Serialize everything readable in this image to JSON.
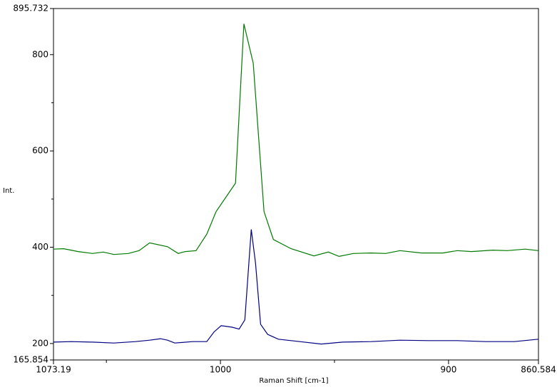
{
  "chart_data": {
    "type": "line",
    "xlabel": "Raman Shift [cm-1]",
    "ylabel": "Int.",
    "xlim": [
      1073.19,
      860.584
    ],
    "xticks": [
      1073.19,
      1000,
      900,
      860.584
    ],
    "xticks_minor": [
      1050,
      950
    ],
    "ylim": [
      165.854,
      895.732
    ],
    "yticks": [
      165.854,
      200,
      400,
      600,
      800,
      895.732
    ],
    "yticks_minor": [
      300,
      500,
      700
    ],
    "series": [
      {
        "color": "#007a00",
        "x": [
          1073.2,
          1068.7,
          1062.4,
          1056.1,
          1051.4,
          1046.7,
          1040.4,
          1035.7,
          1031.0,
          1023.2,
          1018.5,
          1015.4,
          1010.7,
          1006.0,
          1001.9,
          993.4,
          989.7,
          985.6,
          980.9,
          976.8,
          969.0,
          959.0,
          952.7,
          948.0,
          941.7,
          933.9,
          927.6,
          921.3,
          911.9,
          902.5,
          896.2,
          889.9,
          880.5,
          874.3,
          866.4,
          860.6
        ],
        "values": [
          396,
          397,
          391,
          387,
          390,
          385,
          387,
          393,
          409,
          401,
          387,
          391,
          393,
          427,
          474,
          533,
          864,
          782,
          474,
          416,
          397,
          382,
          390,
          381,
          387,
          388,
          387,
          393,
          388,
          388,
          393,
          391,
          394,
          393,
          396,
          393
        ]
      },
      {
        "color": "#000080",
        "x": [
          1073.2,
          1065.4,
          1056.1,
          1046.7,
          1037.3,
          1031.0,
          1026.3,
          1023.2,
          1020.0,
          1012.2,
          1006.0,
          1002.8,
          999.7,
          995.0,
          991.8,
          989.3,
          986.5,
          984.6,
          982.4,
          979.3,
          974.6,
          965.2,
          955.8,
          946.4,
          933.9,
          921.3,
          908.8,
          896.2,
          883.7,
          871.2,
          860.6
        ],
        "values": [
          203,
          204,
          203,
          201,
          204,
          207,
          210,
          207,
          201,
          204,
          204,
          224,
          237,
          234,
          230,
          249,
          437,
          367,
          240,
          219,
          209,
          204,
          199,
          203,
          204,
          207,
          206,
          206,
          204,
          204,
          209
        ]
      }
    ]
  }
}
